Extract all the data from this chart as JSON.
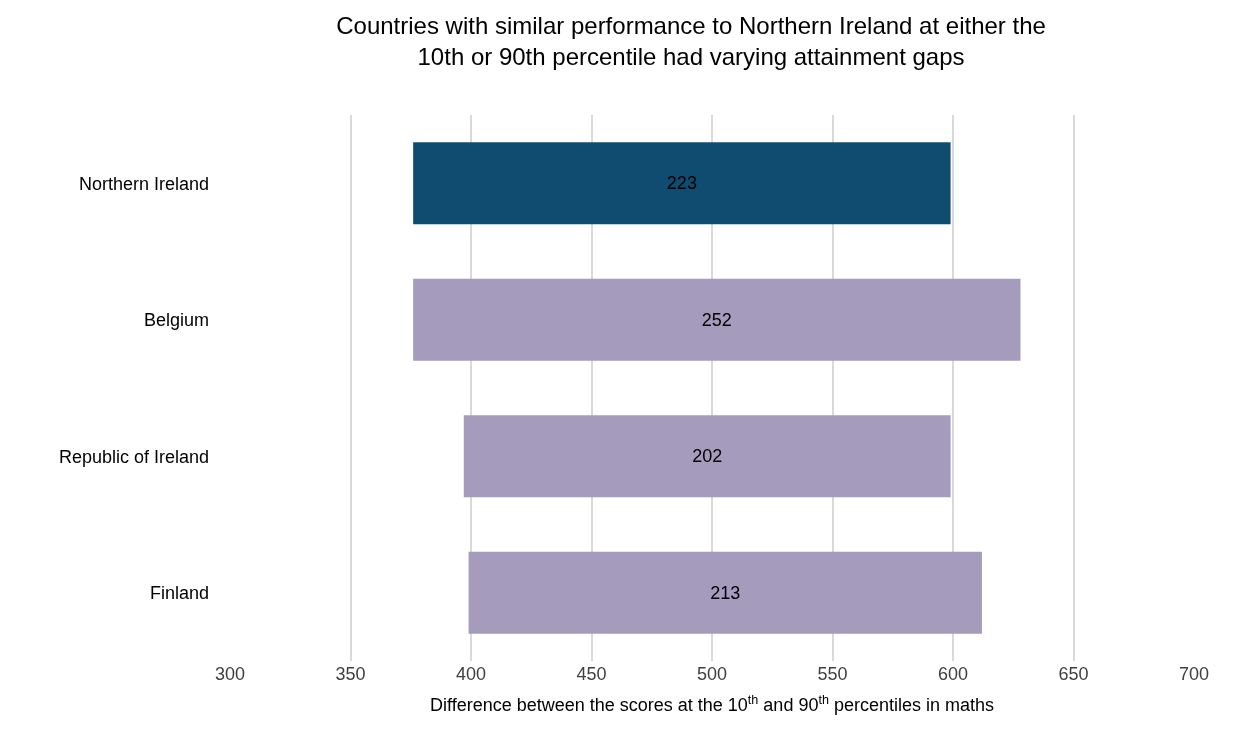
{
  "chart_data": {
    "type": "bar",
    "orientation": "horizontal",
    "title": "Countries with similar performance to Northern Ireland at either the\n10th or 90th percentile had varying attainment gaps",
    "xlabel": "Difference between the scores at the 10$^{th}$ and 90$^{th}$ percentiles in maths",
    "categories": [
      "Northern Ireland",
      "Belgium",
      "Republic of Ireland",
      "Finland"
    ],
    "values": [
      223,
      252,
      202,
      213
    ],
    "base": [
      376,
      376,
      397,
      399
    ],
    "colors": [
      "#0f4c70",
      "#a59bbd",
      "#a59bbd",
      "#a59bbd"
    ],
    "data_labels": true,
    "xlim": [
      300,
      700
    ],
    "xticks": [
      300,
      350,
      400,
      450,
      500,
      550,
      600,
      650,
      700
    ],
    "grid": "x"
  }
}
